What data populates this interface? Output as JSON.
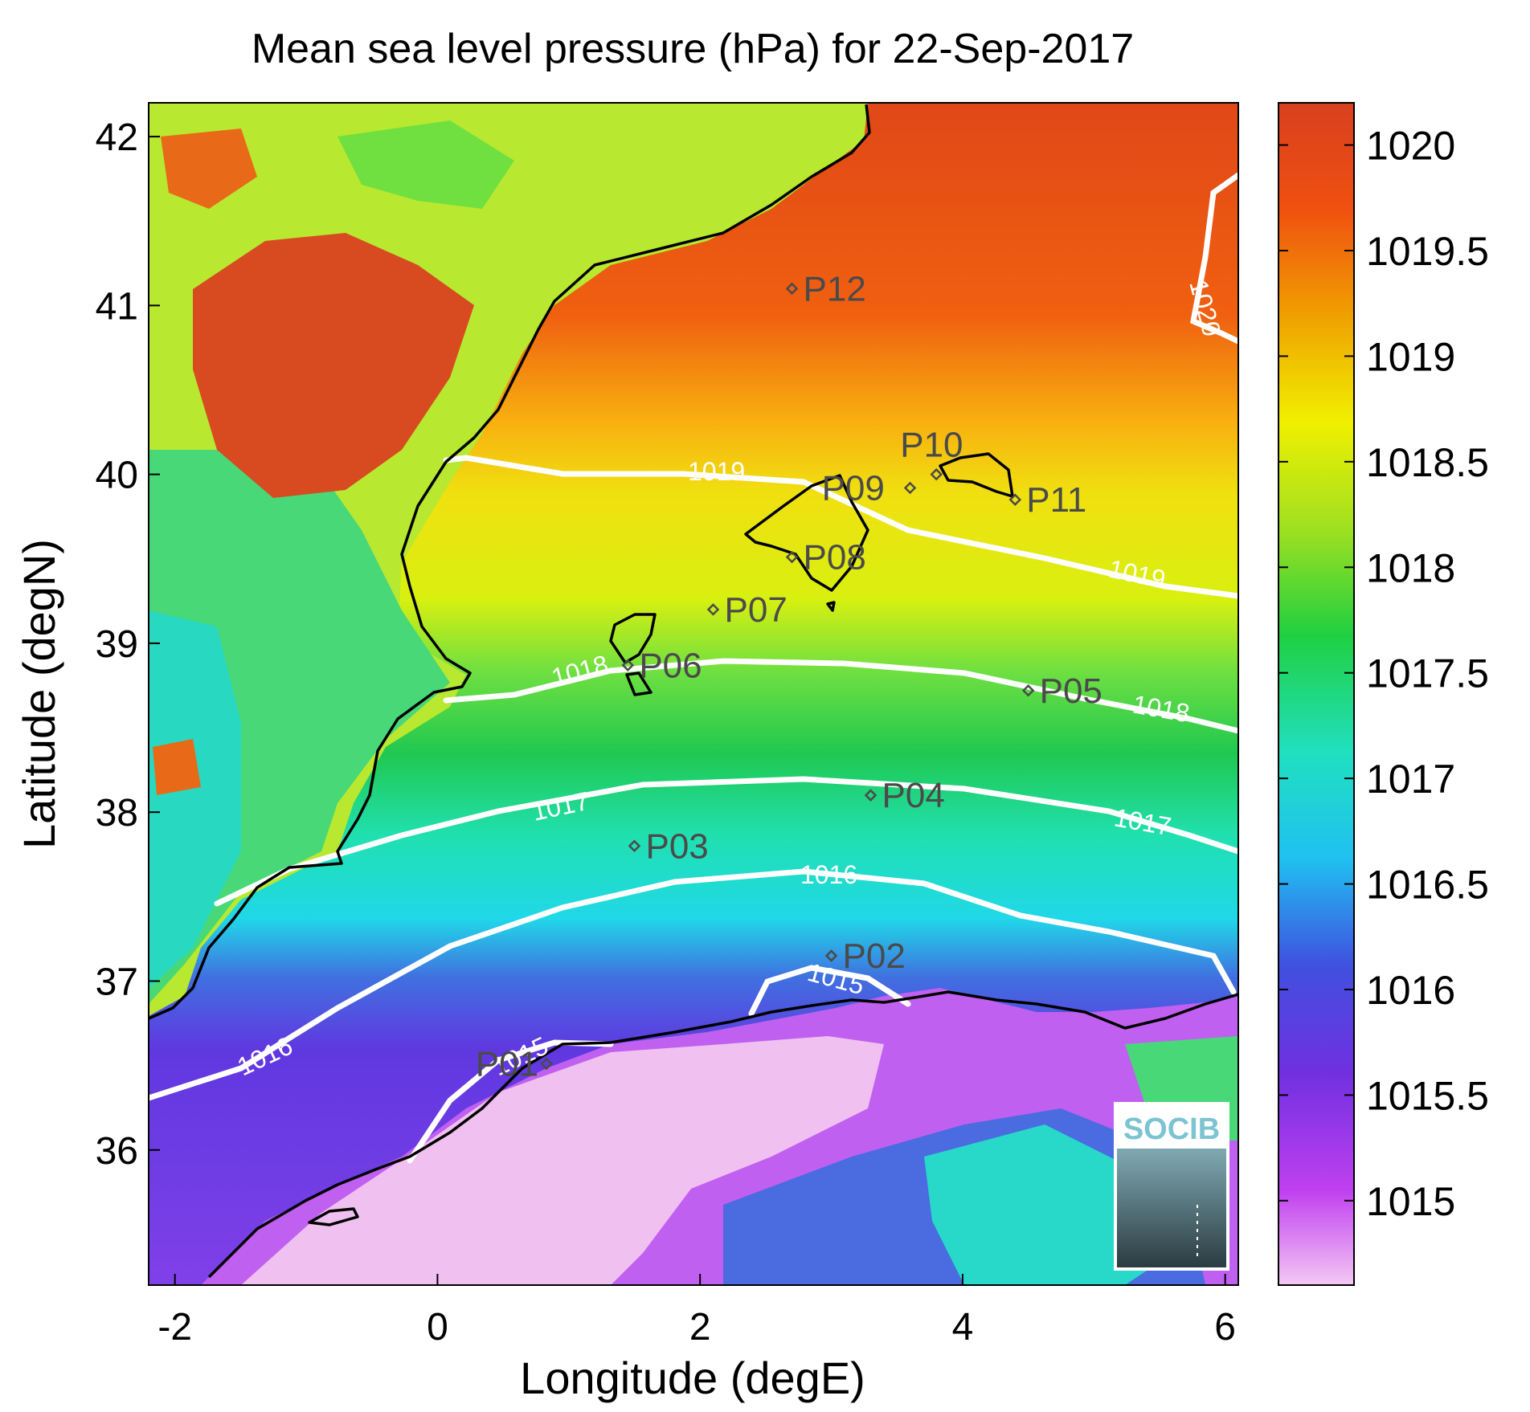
{
  "title": "Mean sea level pressure (hPa) for 22-Sep-2017",
  "x_axis": {
    "label": "Longitude (degE)",
    "range": [
      -2.2,
      6.1
    ],
    "ticks": [
      {
        "value": -2,
        "label": "-2"
      },
      {
        "value": 0,
        "label": "0"
      },
      {
        "value": 2,
        "label": "2"
      },
      {
        "value": 4,
        "label": "4"
      },
      {
        "value": 6,
        "label": "6"
      }
    ]
  },
  "y_axis": {
    "label": "Latitude (degN)",
    "range": [
      35.2,
      42.2
    ],
    "ticks": [
      {
        "value": 36,
        "label": "36"
      },
      {
        "value": 37,
        "label": "37"
      },
      {
        "value": 38,
        "label": "38"
      },
      {
        "value": 39,
        "label": "39"
      },
      {
        "value": 40,
        "label": "40"
      },
      {
        "value": 41,
        "label": "41"
      },
      {
        "value": 42,
        "label": "42"
      }
    ]
  },
  "colorbar": {
    "range": [
      1014.6,
      1020.2
    ],
    "ticks": [
      {
        "value": 1015,
        "label": "1015"
      },
      {
        "value": 1015.5,
        "label": "1015.5"
      },
      {
        "value": 1016,
        "label": "1016"
      },
      {
        "value": 1016.5,
        "label": "1016.5"
      },
      {
        "value": 1017,
        "label": "1017"
      },
      {
        "value": 1017.5,
        "label": "1017.5"
      },
      {
        "value": 1018,
        "label": "1018"
      },
      {
        "value": 1018.5,
        "label": "1018.5"
      },
      {
        "value": 1019,
        "label": "1019"
      },
      {
        "value": 1019.5,
        "label": "1019.5"
      },
      {
        "value": 1020,
        "label": "1020"
      }
    ],
    "colors": [
      "#f4c8f4",
      "#c040f0",
      "#7030e0",
      "#4050e0",
      "#20c0f0",
      "#20e0c0",
      "#20d040",
      "#a0e020",
      "#f0f000",
      "#f0a000",
      "#f05010",
      "#d84020"
    ]
  },
  "contours": [
    {
      "level": 1015,
      "label": "1015"
    },
    {
      "level": 1016,
      "label": "1016"
    },
    {
      "level": 1017,
      "label": "1017"
    },
    {
      "level": 1018,
      "label": "1018"
    },
    {
      "level": 1019,
      "label": "1019"
    },
    {
      "level": 1020,
      "label": "1020"
    }
  ],
  "stations": [
    {
      "name": "P01",
      "lon": 0.83,
      "lat": 36.51
    },
    {
      "name": "P02",
      "lon": 3.0,
      "lat": 37.15
    },
    {
      "name": "P03",
      "lon": 1.5,
      "lat": 37.8
    },
    {
      "name": "P04",
      "lon": 3.3,
      "lat": 38.1
    },
    {
      "name": "P05",
      "lon": 4.5,
      "lat": 38.72
    },
    {
      "name": "P06",
      "lon": 1.45,
      "lat": 38.87
    },
    {
      "name": "P07",
      "lon": 2.1,
      "lat": 39.2
    },
    {
      "name": "P08",
      "lon": 2.7,
      "lat": 39.51
    },
    {
      "name": "P09",
      "lon": 3.6,
      "lat": 39.92
    },
    {
      "name": "P10",
      "lon": 3.8,
      "lat": 40.0
    },
    {
      "name": "P11",
      "lon": 4.4,
      "lat": 39.85
    },
    {
      "name": "P12",
      "lon": 2.7,
      "lat": 41.1
    }
  ],
  "logo": {
    "text": "SOCIB"
  },
  "colors": {
    "contour": "#ffffff",
    "coastline": "#000000",
    "station": "#4a4a4a"
  }
}
